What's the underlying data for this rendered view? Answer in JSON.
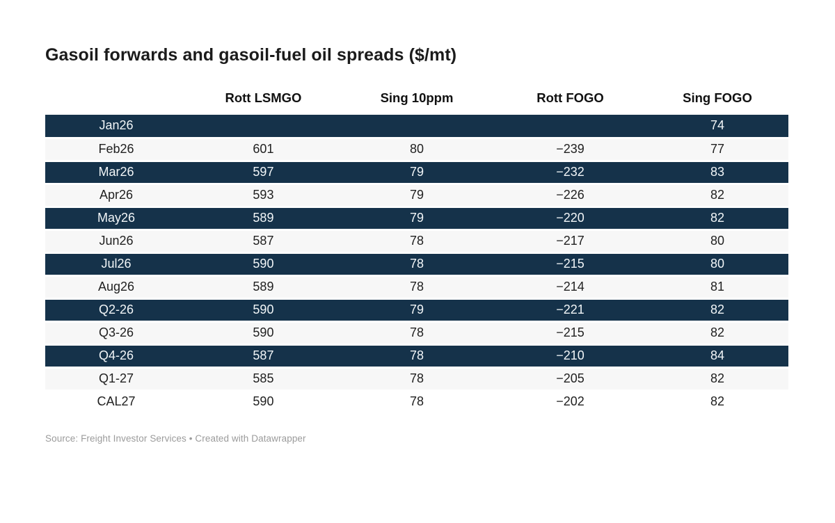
{
  "title": "Gasoil forwards and gasoil-fuel oil spreads ($/mt)",
  "table": {
    "columns": [
      "",
      "Rott LSMGO",
      "Sing 10ppm",
      "Rott FOGO",
      "Sing FOGO"
    ],
    "column_widths": [
      "19.1%",
      "20.5%",
      "20.8%",
      "20.5%",
      "19.1%"
    ],
    "rows": [
      {
        "label": "Jan26",
        "values": [
          "",
          "",
          "",
          "74"
        ],
        "style": "dark"
      },
      {
        "label": "Feb26",
        "values": [
          "601",
          "80",
          "−239",
          "77"
        ],
        "style": "light"
      },
      {
        "label": "Mar26",
        "values": [
          "597",
          "79",
          "−232",
          "83"
        ],
        "style": "dark"
      },
      {
        "label": "Apr26",
        "values": [
          "593",
          "79",
          "−226",
          "82"
        ],
        "style": "light"
      },
      {
        "label": "May26",
        "values": [
          "589",
          "79",
          "−220",
          "82"
        ],
        "style": "dark"
      },
      {
        "label": "Jun26",
        "values": [
          "587",
          "78",
          "−217",
          "80"
        ],
        "style": "light"
      },
      {
        "label": "Jul26",
        "values": [
          "590",
          "78",
          "−215",
          "80"
        ],
        "style": "dark"
      },
      {
        "label": "Aug26",
        "values": [
          "589",
          "78",
          "−214",
          "81"
        ],
        "style": "light"
      },
      {
        "label": "Q2-26",
        "values": [
          "590",
          "79",
          "−221",
          "82"
        ],
        "style": "dark"
      },
      {
        "label": "Q3-26",
        "values": [
          "590",
          "78",
          "−215",
          "82"
        ],
        "style": "light"
      },
      {
        "label": "Q4-26",
        "values": [
          "587",
          "78",
          "−210",
          "84"
        ],
        "style": "dark"
      },
      {
        "label": "Q1-27",
        "values": [
          "585",
          "78",
          "−205",
          "82"
        ],
        "style": "light"
      },
      {
        "label": "CAL27",
        "values": [
          "590",
          "78",
          "−202",
          "82"
        ],
        "style": "white"
      }
    ]
  },
  "footer": {
    "source": "Source: Freight Investor Services • Created with Datawrapper"
  },
  "colors": {
    "row_highlight": "#15324a",
    "row_stripe": "#f7f7f7",
    "row_plain": "#ffffff",
    "highlight_text": "#f2f6f8",
    "body_text": "#212121",
    "header_text": "#111111",
    "title_text": "#1b1b1b",
    "source_text": "#9b9b9b"
  },
  "chart_data": {
    "type": "table",
    "title": "Gasoil forwards and gasoil-fuel oil spreads ($/mt)",
    "categories": [
      "Jan26",
      "Feb26",
      "Mar26",
      "Apr26",
      "May26",
      "Jun26",
      "Jul26",
      "Aug26",
      "Q2-26",
      "Q3-26",
      "Q4-26",
      "Q1-27",
      "CAL27"
    ],
    "series": [
      {
        "name": "Rott LSMGO",
        "values": [
          null,
          601,
          597,
          593,
          589,
          587,
          590,
          589,
          590,
          590,
          587,
          585,
          590
        ]
      },
      {
        "name": "Sing 10ppm",
        "values": [
          null,
          80,
          79,
          79,
          79,
          78,
          78,
          78,
          79,
          78,
          78,
          78,
          78
        ]
      },
      {
        "name": "Rott FOGO",
        "values": [
          null,
          -239,
          -232,
          -226,
          -220,
          -217,
          -215,
          -214,
          -221,
          -215,
          -210,
          -205,
          -202
        ]
      },
      {
        "name": "Sing FOGO",
        "values": [
          74,
          77,
          83,
          82,
          82,
          80,
          80,
          81,
          82,
          82,
          84,
          82,
          82
        ]
      }
    ],
    "highlighted_rows": [
      "Jan26",
      "Mar26",
      "May26",
      "Jul26",
      "Q2-26",
      "Q4-26"
    ],
    "source": "Freight Investor Services",
    "tool": "Datawrapper"
  }
}
